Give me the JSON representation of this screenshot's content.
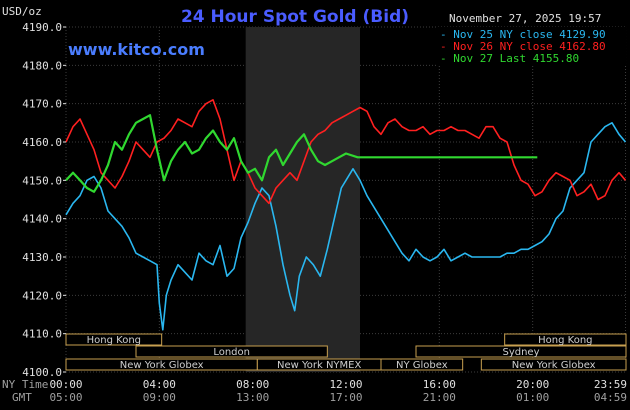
{
  "chart_data": {
    "type": "line",
    "title": "24 Hour Spot Gold (Bid)",
    "brand": "www.kitco.com",
    "ylabel": "USD/oz",
    "datetime": "November 27, 2025 19:57",
    "ylim": [
      4100,
      4190
    ],
    "yticks": [
      "4100.0",
      "4110.0",
      "4120.0",
      "4130.0",
      "4140.0",
      "4150.0",
      "4160.0",
      "4170.0",
      "4180.0",
      "4190.0"
    ],
    "xlim_hours": [
      0,
      24
    ],
    "x_ny_label": "NY Time",
    "x_gmt_label": "GMT",
    "x_ny_ticks": [
      "00:00",
      "04:00",
      "08:00",
      "12:00",
      "16:00",
      "20:00",
      "23:59"
    ],
    "x_gmt_ticks": [
      "05:00",
      "09:00",
      "13:00",
      "17:00",
      "21:00",
      "01:00",
      "04:59"
    ],
    "x_tick_hours": [
      0,
      4,
      8,
      12,
      16,
      20,
      23.98
    ],
    "highlight_hours": [
      7.7,
      12.6
    ],
    "grid": true,
    "legend_position": "top-right",
    "series": [
      {
        "name": "Nov 25 NY close 4129.90",
        "color": "#2ab7f0",
        "x": [
          0,
          0.3,
          0.6,
          0.9,
          1.2,
          1.5,
          1.8,
          2.1,
          2.4,
          2.7,
          3,
          3.3,
          3.6,
          3.9,
          4,
          4.15,
          4.3,
          4.5,
          4.8,
          5.1,
          5.4,
          5.7,
          6,
          6.3,
          6.6,
          6.9,
          7.2,
          7.5,
          7.8,
          8.1,
          8.4,
          8.7,
          9,
          9.3,
          9.6,
          9.8,
          10,
          10.3,
          10.6,
          10.9,
          11.2,
          11.5,
          11.8,
          12,
          12.3,
          12.6,
          12.9,
          13.2,
          13.5,
          13.8,
          14.1,
          14.4,
          14.7,
          15,
          15.3,
          15.6,
          15.9,
          16.2,
          16.5,
          16.8,
          17.1,
          17.4,
          17.7,
          18,
          18.3,
          18.6,
          18.9,
          19.2,
          19.5,
          19.8,
          20.1,
          20.4,
          20.7,
          21,
          21.3,
          21.6,
          21.9,
          22.2,
          22.5,
          22.8,
          23.1,
          23.4,
          23.7,
          23.98
        ],
        "values": [
          4141,
          4144,
          4146,
          4150,
          4151,
          4148,
          4142,
          4140,
          4138,
          4135,
          4131,
          4130,
          4129,
          4128,
          4118,
          4111,
          4120,
          4124,
          4128,
          4126,
          4124,
          4131,
          4129,
          4128,
          4133,
          4125,
          4127,
          4135,
          4139,
          4144,
          4148,
          4146,
          4138,
          4128,
          4120,
          4116,
          4125,
          4130,
          4128,
          4125,
          4132,
          4140,
          4148,
          4150,
          4153,
          4150,
          4146,
          4143,
          4140,
          4137,
          4134,
          4131,
          4129,
          4132,
          4130,
          4129,
          4130,
          4132,
          4129,
          4130,
          4131,
          4130,
          4130,
          4130,
          4130,
          4130,
          4131,
          4131,
          4132,
          4132,
          4133,
          4134,
          4136,
          4140,
          4142,
          4148,
          4150,
          4152,
          4160,
          4162,
          4164,
          4165,
          4162,
          4160
        ]
      },
      {
        "name": "Nov 26 NY close 4162.80",
        "color": "#ff2020",
        "x": [
          0,
          0.3,
          0.6,
          0.9,
          1.2,
          1.5,
          1.8,
          2.1,
          2.4,
          2.7,
          3,
          3.3,
          3.6,
          3.9,
          4.2,
          4.5,
          4.8,
          5.1,
          5.4,
          5.7,
          6,
          6.3,
          6.6,
          6.9,
          7.2,
          7.5,
          7.8,
          8.1,
          8.4,
          8.7,
          9,
          9.3,
          9.6,
          9.9,
          10.2,
          10.5,
          10.8,
          11.1,
          11.4,
          11.7,
          12,
          12.3,
          12.6,
          12.9,
          13.2,
          13.5,
          13.8,
          14.1,
          14.4,
          14.7,
          15,
          15.3,
          15.6,
          15.9,
          16.2,
          16.5,
          16.8,
          17.1,
          17.4,
          17.7,
          18,
          18.3,
          18.6,
          18.9,
          19.2,
          19.5,
          19.8,
          20.1,
          20.4,
          20.7,
          21,
          21.3,
          21.6,
          21.9,
          22.2,
          22.5,
          22.8,
          23.1,
          23.4,
          23.7,
          23.98
        ],
        "values": [
          4160,
          4164,
          4166,
          4162,
          4158,
          4152,
          4150,
          4148,
          4151,
          4155,
          4160,
          4158,
          4156,
          4160,
          4161,
          4163,
          4166,
          4165,
          4164,
          4168,
          4170,
          4171,
          4166,
          4158,
          4150,
          4155,
          4152,
          4148,
          4146,
          4144,
          4148,
          4150,
          4152,
          4150,
          4155,
          4160,
          4162,
          4163,
          4165,
          4166,
          4167,
          4168,
          4169,
          4168,
          4164,
          4162,
          4165,
          4166,
          4164,
          4163,
          4163,
          4164,
          4162,
          4163,
          4163,
          4164,
          4163,
          4163,
          4162,
          4161,
          4164,
          4164,
          4161,
          4160,
          4154,
          4150,
          4149,
          4146,
          4147,
          4150,
          4152,
          4151,
          4150,
          4146,
          4147,
          4149,
          4145,
          4146,
          4150,
          4152,
          4150
        ]
      },
      {
        "name": "Nov 27 Last 4155.80",
        "color": "#30d830",
        "x": [
          0,
          0.3,
          0.6,
          0.9,
          1.2,
          1.5,
          1.8,
          2.1,
          2.4,
          2.7,
          3,
          3.3,
          3.6,
          3.9,
          4.2,
          4.5,
          4.8,
          5.1,
          5.4,
          5.7,
          6,
          6.3,
          6.6,
          6.9,
          7.2,
          7.5,
          7.8,
          8.1,
          8.4,
          8.7,
          9,
          9.3,
          9.6,
          9.9,
          10.2,
          10.5,
          10.8,
          11.1,
          11.4,
          11.7,
          12,
          12.5,
          13,
          13.5,
          14,
          14.5,
          15,
          15.5,
          16,
          16.5,
          17,
          17.5,
          18,
          18.5,
          19,
          19.5,
          20,
          20.2
        ],
        "values": [
          4150,
          4152,
          4150,
          4148,
          4147,
          4150,
          4154,
          4160,
          4158,
          4162,
          4165,
          4166,
          4167,
          4158,
          4150,
          4155,
          4158,
          4160,
          4157,
          4158,
          4161,
          4163,
          4160,
          4158,
          4161,
          4155,
          4152,
          4153,
          4150,
          4156,
          4158,
          4154,
          4157,
          4160,
          4162,
          4158,
          4155,
          4154,
          4155,
          4156,
          4157,
          4156,
          4156,
          4156,
          4156,
          4156,
          4156,
          4156,
          4156,
          4156,
          4156,
          4156,
          4156,
          4156,
          4156,
          4156,
          4156,
          4156
        ]
      }
    ],
    "sessions": [
      {
        "name": "Hong Kong",
        "row": 0,
        "start": 0,
        "end": 4.1
      },
      {
        "name": "Hong Kong",
        "row": 0,
        "start": 18.8,
        "end": 24
      },
      {
        "name": "London",
        "row": 1,
        "start": 3,
        "end": 11.2
      },
      {
        "name": "Sydney",
        "row": 1,
        "start": 15,
        "end": 24
      },
      {
        "name": "New York Globex",
        "row": 2,
        "start": 0,
        "end": 8.2
      },
      {
        "name": "New York NYMEX",
        "row": 2,
        "start": 8.2,
        "end": 13.5
      },
      {
        "name": "NY Globex",
        "row": 2,
        "start": 13.5,
        "end": 17
      },
      {
        "name": "New York Globex",
        "row": 2,
        "start": 17.8,
        "end": 24
      }
    ]
  }
}
